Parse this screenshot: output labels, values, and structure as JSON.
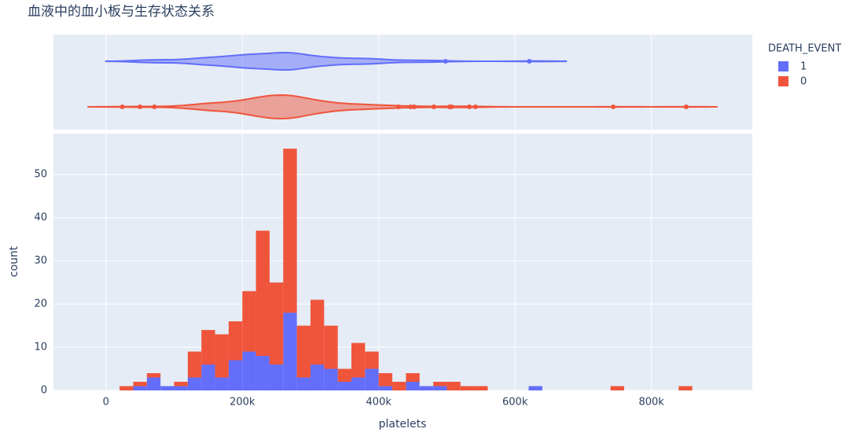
{
  "chart_data": {
    "type": "histogram",
    "title": "血液中的血小板与生存状态关系",
    "xlabel": "platelets",
    "ylabel": "count",
    "legend_title": "DEATH_EVENT",
    "barmode": "stack",
    "grid": true,
    "bins": [
      20000,
      40000,
      60000,
      80000,
      100000,
      120000,
      140000,
      160000,
      180000,
      200000,
      220000,
      240000,
      260000,
      280000,
      300000,
      320000,
      340000,
      360000,
      380000,
      400000,
      420000,
      440000,
      460000,
      480000,
      500000,
      520000,
      540000,
      560000,
      580000,
      600000,
      620000,
      640000,
      660000,
      680000,
      700000,
      720000,
      740000,
      760000,
      780000,
      800000,
      820000,
      840000,
      860000
    ],
    "series": [
      {
        "name": "1",
        "color": "#636efa",
        "values": [
          0,
          1,
          3,
          1,
          1,
          3,
          6,
          3,
          7,
          9,
          8,
          6,
          18,
          3,
          6,
          5,
          2,
          3,
          5,
          1,
          0,
          2,
          1,
          1,
          0,
          0,
          0,
          0,
          0,
          0,
          1,
          0,
          0,
          0,
          0,
          0,
          0,
          0,
          0,
          0,
          0,
          0
        ],
        "outliers": [
          498000,
          621000
        ]
      },
      {
        "name": "0",
        "color": "#EF553B",
        "values": [
          1,
          1,
          1,
          0,
          1,
          6,
          8,
          10,
          9,
          14,
          29,
          19,
          38,
          12,
          15,
          10,
          3,
          8,
          4,
          3,
          2,
          2,
          0,
          1,
          2,
          1,
          1,
          0,
          0,
          0,
          0,
          0,
          0,
          0,
          0,
          0,
          1,
          0,
          0,
          0,
          0,
          1
        ],
        "outliers": [
          24000,
          50000,
          71000,
          429000,
          447000,
          452000,
          481000,
          504000,
          507000,
          533000,
          542000,
          744000,
          851000
        ]
      }
    ],
    "xlim": [
      -77000,
      948000
    ],
    "xticks": [
      0,
      {
        "value": 200000,
        "label": "200k"
      },
      {
        "value": 400000,
        "label": "400k"
      },
      {
        "value": 600000,
        "label": "600k"
      },
      {
        "value": 800000,
        "label": "800k"
      }
    ],
    "ylim": [
      0,
      59.5
    ],
    "yticks": [
      0,
      10,
      20,
      30,
      40,
      50
    ]
  }
}
